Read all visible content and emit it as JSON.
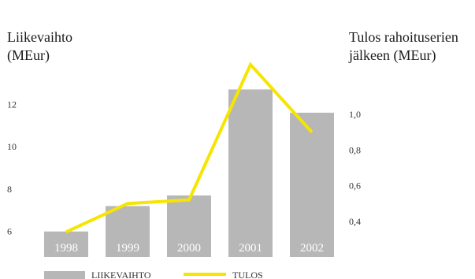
{
  "chart_data": {
    "type": "bar",
    "categories": [
      "1998",
      "1999",
      "2000",
      "2001",
      "2002"
    ],
    "series": [
      {
        "name": "LIIKEVAIHTO",
        "type": "bar",
        "axis": "left",
        "color": "#b7b7b7",
        "values": [
          6.0,
          7.2,
          7.7,
          12.7,
          11.6
        ]
      },
      {
        "name": "TULOS",
        "type": "line",
        "axis": "right",
        "color": "#f6e500",
        "values": [
          0.34,
          0.5,
          0.52,
          1.28,
          0.9
        ]
      }
    ],
    "left_axis": {
      "title_lines": [
        "Liikevaihto",
        "(MEur)"
      ],
      "ticks": [
        {
          "value": 6,
          "label": "6"
        },
        {
          "value": 8,
          "label": "8"
        },
        {
          "value": 10,
          "label": "10"
        },
        {
          "value": 12,
          "label": "12"
        }
      ],
      "ylim": [
        4.8,
        13.2
      ]
    },
    "right_axis": {
      "title_lines": [
        "Tulos rahoituserien",
        "jälkeen (MEur)"
      ],
      "ticks": [
        {
          "value": 0.4,
          "label": "0,4"
        },
        {
          "value": 0.6,
          "label": "0,6"
        },
        {
          "value": 0.8,
          "label": "0,8"
        },
        {
          "value": 1.0,
          "label": "1,0"
        }
      ],
      "ylim": [
        0.2,
        1.2
      ]
    },
    "legend_position": "bottom-left",
    "grid": false
  }
}
